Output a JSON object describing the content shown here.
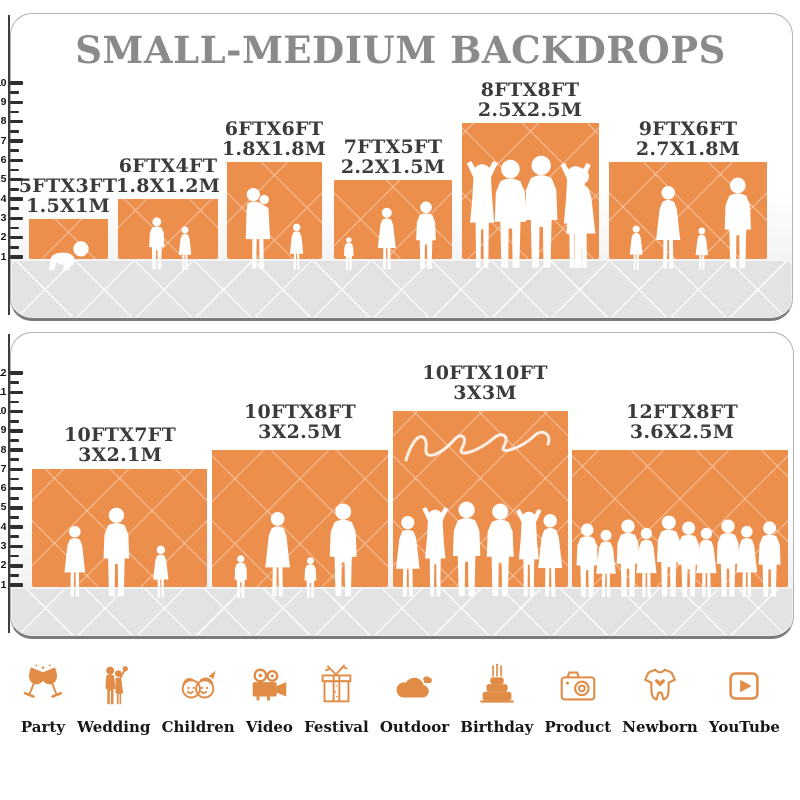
{
  "title": "SMALL-MEDIUM BACKDROPS",
  "accent_color": "#ED8F4C",
  "icon_color": "#E08C46",
  "ground_color": "#e3e3e3",
  "title_color": "#8a8a8a",
  "panel_small_medium": {
    "ruler": {
      "min": 1,
      "max": 10
    },
    "items": [
      {
        "size_ft": "5FTX3FT",
        "size_m": "1.5X1M",
        "figures": "crawling-baby"
      },
      {
        "size_ft": "6FTX4FT",
        "size_m": "1.8X1.2M",
        "figures": "boy-and-girl"
      },
      {
        "size_ft": "6FTX6FT",
        "size_m": "1.8X1.8M",
        "figures": "mother-holding-baby-and-girl"
      },
      {
        "size_ft": "7FTX5FT",
        "size_m": "2.2X1.5M",
        "figures": "toddler-woman-man"
      },
      {
        "size_ft": "8FTX8FT",
        "size_m": "2.5X2.5M",
        "figures": "five-adults-posing"
      },
      {
        "size_ft": "9FTX6FT",
        "size_m": "2.7X1.8M",
        "figures": "family-of-four"
      }
    ]
  },
  "panel_large": {
    "ruler": {
      "min": 1,
      "max": 12
    },
    "items": [
      {
        "size_ft": "10FTX7FT",
        "size_m": "3X2.1M",
        "figures": "woman-man-girl"
      },
      {
        "size_ft": "10FTX8FT",
        "size_m": "3X2.5M",
        "figures": "family-walking"
      },
      {
        "size_ft": "10FTX10FT",
        "size_m": "3X3M",
        "figures": "six-adults-posing"
      },
      {
        "size_ft": "12FTX8FT",
        "size_m": "3.6X2.5M",
        "figures": "crowd-of-ten"
      }
    ]
  },
  "categories": [
    {
      "label": "Party",
      "icon": "party-glasses-icon"
    },
    {
      "label": "Wedding",
      "icon": "wedding-couple-icon"
    },
    {
      "label": "Children",
      "icon": "children-faces-icon"
    },
    {
      "label": "Video",
      "icon": "video-camera-icon"
    },
    {
      "label": "Festival",
      "icon": "gift-box-icon"
    },
    {
      "label": "Outdoor",
      "icon": "cloud-icon"
    },
    {
      "label": "Birthday",
      "icon": "birthday-cake-icon"
    },
    {
      "label": "Product",
      "icon": "photo-camera-icon"
    },
    {
      "label": "Newborn",
      "icon": "baby-onesie-icon"
    },
    {
      "label": "YouTube",
      "icon": "youtube-play-icon"
    }
  ],
  "chart_data": [
    {
      "type": "bar",
      "title": "SMALL-MEDIUM BACKDROPS",
      "categories": [
        "5FTX3FT",
        "6FTX4FT",
        "6FTX6FT",
        "7FTX5FT",
        "8FTX8FT",
        "9FTX6FT"
      ],
      "series": [
        {
          "name": "width_ft",
          "values": [
            5,
            6,
            6,
            7,
            8,
            9
          ]
        },
        {
          "name": "height_ft",
          "values": [
            3,
            4,
            6,
            5,
            8,
            6
          ]
        }
      ],
      "metric_labels": [
        "1.5X1M",
        "1.8X1.2M",
        "1.8X1.8M",
        "2.2X1.5M",
        "2.5X2.5M",
        "2.7X1.8M"
      ],
      "ylabel": "feet (ruler)",
      "ylim": [
        1,
        10
      ],
      "grid": false,
      "legend_position": "none"
    },
    {
      "type": "bar",
      "title": "",
      "categories": [
        "10FTX7FT",
        "10FTX8FT",
        "10FTX10FT",
        "12FTX8FT"
      ],
      "series": [
        {
          "name": "width_ft",
          "values": [
            10,
            10,
            10,
            12
          ]
        },
        {
          "name": "height_ft",
          "values": [
            7,
            8,
            10,
            8
          ]
        }
      ],
      "metric_labels": [
        "3X2.1M",
        "3X2.5M",
        "3X3M",
        "3.6X2.5M"
      ],
      "ylabel": "feet (ruler)",
      "ylim": [
        1,
        12
      ],
      "grid": false,
      "legend_position": "none"
    }
  ]
}
